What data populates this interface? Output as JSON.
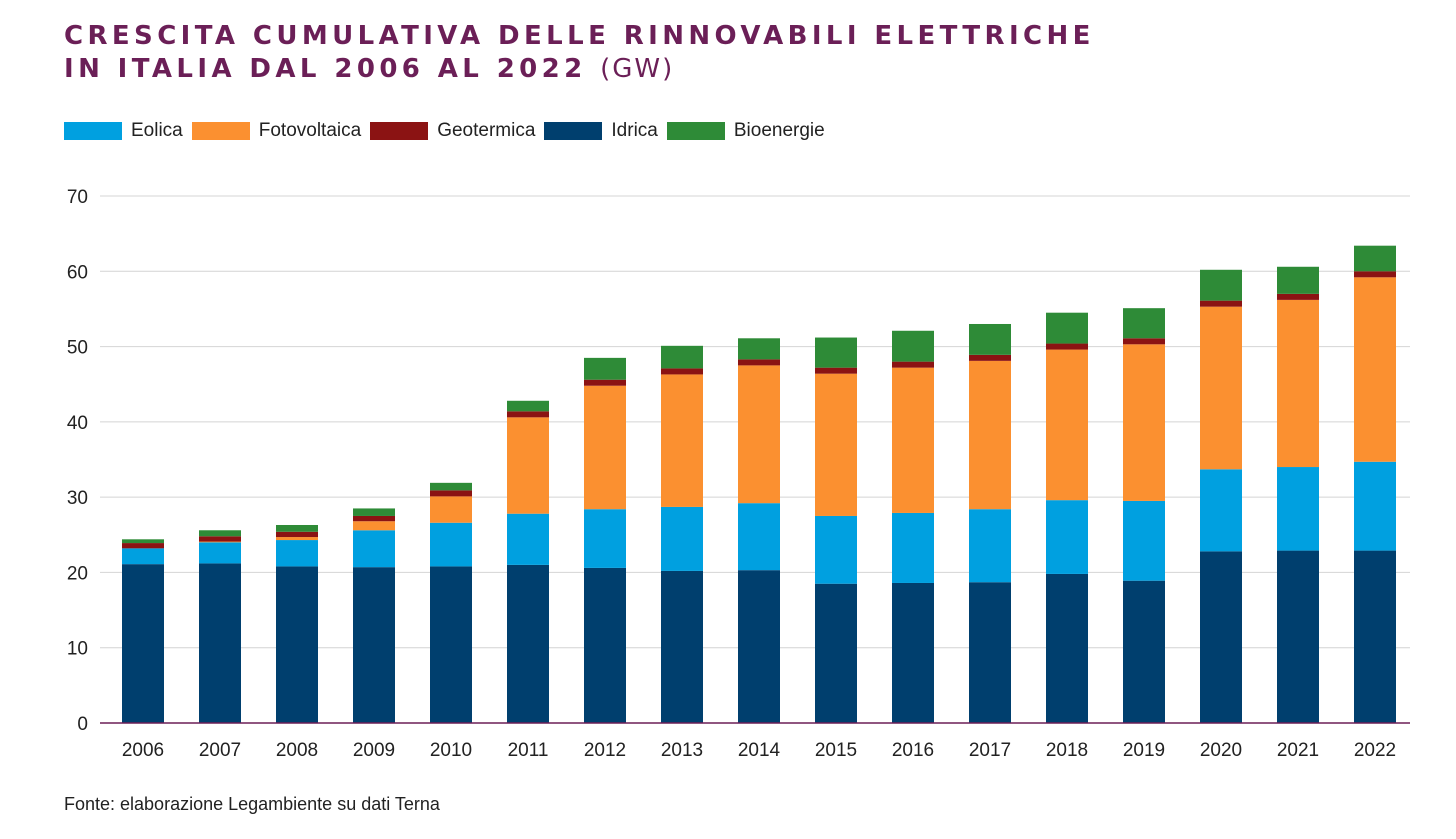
{
  "header": {
    "title_line1": "CRESCITA CUMULATIVA DELLE RINNOVABILI ELETTRICHE",
    "title_line2": "IN ITALIA DAL 2006 AL 2022",
    "title_unit": "(GW)"
  },
  "source": "Fonte: elaborazione Legambiente su dati Terna",
  "chart_data": {
    "type": "bar",
    "stacked": true,
    "title": "CRESCITA CUMULATIVA DELLE RINNOVABILI ELETTRICHE IN ITALIA DAL 2006 AL 2022 (GW)",
    "xlabel": "",
    "ylabel": "",
    "ylim": [
      0,
      70
    ],
    "yticks": [
      0,
      10,
      20,
      30,
      40,
      50,
      60,
      70
    ],
    "grid": true,
    "legend_position": "top-left",
    "categories": [
      "2006",
      "2007",
      "2008",
      "2009",
      "2010",
      "2011",
      "2012",
      "2013",
      "2014",
      "2015",
      "2016",
      "2017",
      "2018",
      "2019",
      "2020",
      "2021",
      "2022"
    ],
    "series": [
      {
        "name": "Idrica",
        "color": "#003f6e",
        "values": [
          21.1,
          21.2,
          20.8,
          20.7,
          20.8,
          21.0,
          20.6,
          20.2,
          20.3,
          18.5,
          18.6,
          18.7,
          19.8,
          18.9,
          22.8,
          22.9,
          22.9
        ]
      },
      {
        "name": "Eolica",
        "color": "#00a0e0",
        "values": [
          2.1,
          2.8,
          3.5,
          4.9,
          5.8,
          6.8,
          7.8,
          8.5,
          8.9,
          9.0,
          9.3,
          9.7,
          9.8,
          10.6,
          10.9,
          11.1,
          11.8
        ]
      },
      {
        "name": "Fotovoltaica",
        "color": "#fb9030",
        "values": [
          0.0,
          0.1,
          0.4,
          1.2,
          3.5,
          12.8,
          16.4,
          17.6,
          18.3,
          18.9,
          19.3,
          19.7,
          20.0,
          20.8,
          21.6,
          22.2,
          24.5
        ]
      },
      {
        "name": "Geotermica",
        "color": "#8b1313",
        "values": [
          0.7,
          0.7,
          0.7,
          0.7,
          0.8,
          0.8,
          0.8,
          0.8,
          0.8,
          0.8,
          0.8,
          0.8,
          0.8,
          0.8,
          0.8,
          0.8,
          0.8
        ]
      },
      {
        "name": "Bioenergie",
        "color": "#2e8b37",
        "values": [
          0.5,
          0.8,
          0.9,
          1.0,
          1.0,
          1.4,
          2.9,
          3.0,
          2.8,
          4.0,
          4.1,
          4.1,
          4.1,
          4.0,
          4.1,
          3.6,
          3.4
        ]
      }
    ],
    "legend_order": [
      "Eolica",
      "Fotovoltaica",
      "Geotermica",
      "Idrica",
      "Bioenergie"
    ]
  }
}
